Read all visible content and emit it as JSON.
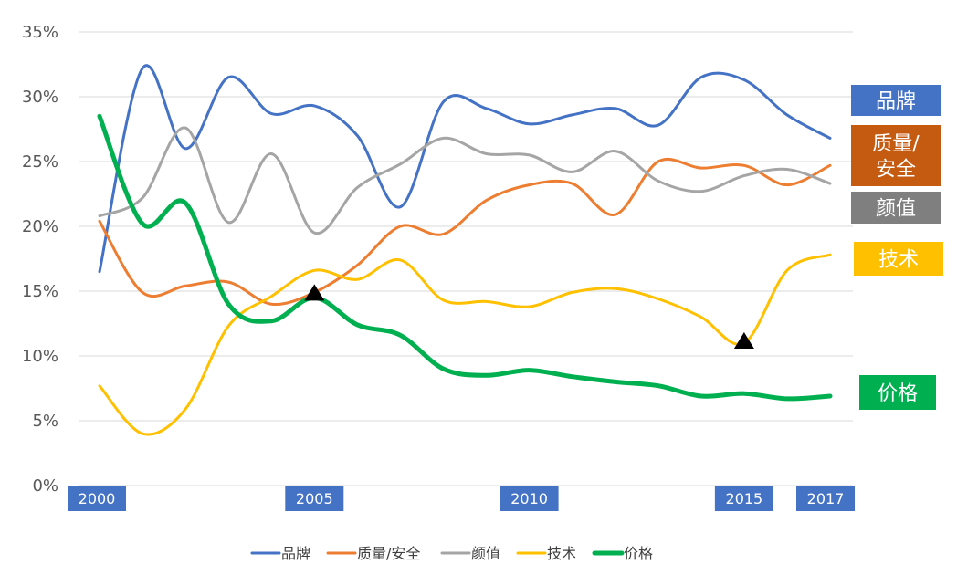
{
  "chart_data": {
    "type": "line",
    "x": [
      2000,
      2001,
      2002,
      2003,
      2004,
      2005,
      2006,
      2007,
      2008,
      2009,
      2010,
      2011,
      2012,
      2013,
      2014,
      2015,
      2016,
      2017
    ],
    "ylim": [
      0,
      35
    ],
    "yticks": [
      0,
      5,
      10,
      15,
      20,
      25,
      30,
      35
    ],
    "ytick_format": "{v}%",
    "grid": true,
    "legend": "bottom",
    "x_tick_labels": [
      {
        "x": 2000,
        "label": "2000"
      },
      {
        "x": 2005,
        "label": "2005"
      },
      {
        "x": 2010,
        "label": "2010"
      },
      {
        "x": 2015,
        "label": "2015"
      },
      {
        "x": 2017,
        "label": "2017"
      }
    ],
    "series": [
      {
        "name": "品牌",
        "color": "#4472C4",
        "values": [
          16.5,
          32.2,
          26.0,
          31.5,
          28.7,
          29.3,
          27.0,
          21.5,
          29.6,
          29.1,
          27.9,
          28.6,
          29.1,
          27.8,
          31.5,
          31.3,
          28.6,
          26.8
        ]
      },
      {
        "name": "质量/安全",
        "color": "#ED7D31",
        "values": [
          20.4,
          14.9,
          15.4,
          15.7,
          14.0,
          14.9,
          17.0,
          20.0,
          19.4,
          22.0,
          23.2,
          23.3,
          20.9,
          25.0,
          24.5,
          24.7,
          23.2,
          24.7
        ]
      },
      {
        "name": "颜值",
        "color": "#A5A5A5",
        "values": [
          20.8,
          22.2,
          27.6,
          20.3,
          25.6,
          19.5,
          23.0,
          24.8,
          26.8,
          25.6,
          25.5,
          24.2,
          25.8,
          23.5,
          22.7,
          23.9,
          24.4,
          23.3
        ]
      },
      {
        "name": "技术",
        "color": "#FFC000",
        "values": [
          7.7,
          4.0,
          5.9,
          12.3,
          14.6,
          16.6,
          15.9,
          17.4,
          14.3,
          14.2,
          13.8,
          14.9,
          15.2,
          14.4,
          13.0,
          11.0,
          16.6,
          17.8
        ]
      },
      {
        "name": "价格",
        "color": "#00B050",
        "values": [
          28.5,
          20.2,
          21.8,
          14.0,
          12.7,
          14.5,
          12.4,
          11.6,
          9.0,
          8.5,
          8.9,
          8.4,
          8.0,
          7.7,
          6.9,
          7.1,
          6.7,
          6.9
        ]
      }
    ],
    "markers": [
      {
        "x": 2005,
        "y": 14.9,
        "shape": "triangle"
      },
      {
        "x": 2015,
        "y": 11.2,
        "shape": "triangle"
      }
    ],
    "callouts": [
      {
        "text": "品牌",
        "color": "#4472C4"
      },
      {
        "text": "质量/\n安全",
        "color": "#C55A11"
      },
      {
        "text": "颜值",
        "color": "#7F7F7F"
      },
      {
        "text": "技术",
        "color": "#FFC000"
      },
      {
        "text": "价格",
        "color": "#00B050"
      }
    ]
  }
}
